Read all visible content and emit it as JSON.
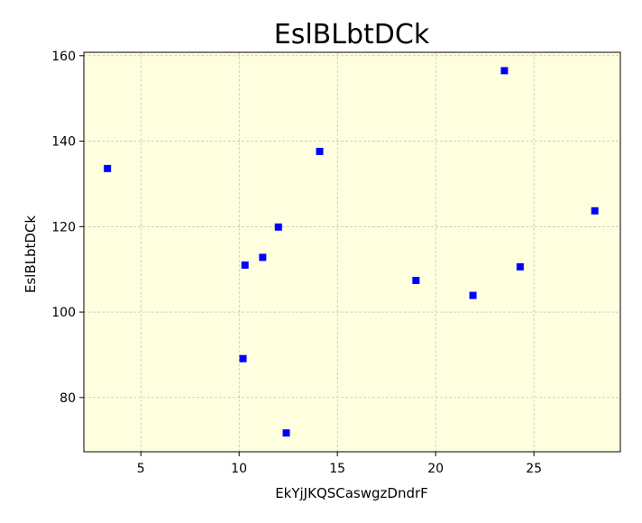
{
  "chart_data": {
    "type": "scatter",
    "title": "EslBLbtDCk",
    "xlabel": "EkYjJKQSCaswgzDndrF",
    "ylabel": "EslBLbtDCk",
    "xlim": [
      2.1,
      29.4
    ],
    "ylim": [
      67.3,
      160.8
    ],
    "xticks": [
      5,
      10,
      15,
      20,
      25
    ],
    "yticks": [
      80,
      100,
      120,
      140,
      160
    ],
    "grid": true,
    "marker": "square",
    "colors": {
      "plot_background": "#ffffe0",
      "marker": "#0000ff",
      "grid": "#b0b0b0"
    },
    "points": [
      {
        "x": 3.3,
        "y": 133.6
      },
      {
        "x": 10.2,
        "y": 89.1
      },
      {
        "x": 10.3,
        "y": 111.0
      },
      {
        "x": 11.2,
        "y": 112.8
      },
      {
        "x": 12.0,
        "y": 119.9
      },
      {
        "x": 12.4,
        "y": 71.7
      },
      {
        "x": 14.1,
        "y": 137.6
      },
      {
        "x": 19.0,
        "y": 107.4
      },
      {
        "x": 21.9,
        "y": 103.9
      },
      {
        "x": 23.5,
        "y": 156.5
      },
      {
        "x": 24.3,
        "y": 110.6
      },
      {
        "x": 28.1,
        "y": 123.7
      }
    ]
  }
}
